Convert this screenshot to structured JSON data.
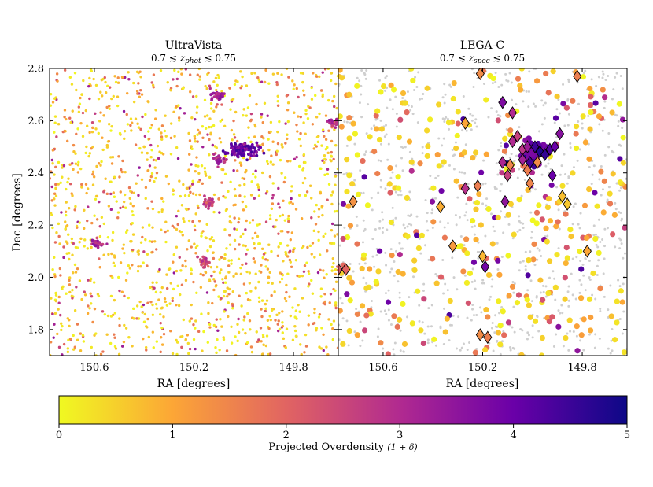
{
  "chart_data": [
    {
      "type": "scatter",
      "title": "UltraVista",
      "subtitle": "0.7 ≲ z_phot ≲ 0.75",
      "subtitle_parts": {
        "pre": "0.7 ≲ ",
        "var": "z",
        "sub": "phot",
        "post": " ≲ 0.75"
      },
      "xlabel": "RA [degrees]",
      "ylabel": "Dec [degrees]",
      "xlim": [
        150.78,
        149.62
      ],
      "ylim": [
        1.7,
        2.8
      ],
      "x_inverted": true,
      "xticks": [
        150.6,
        150.2,
        149.8
      ],
      "xtick_labels": [
        "150.6",
        "150.2",
        "149.8"
      ],
      "yticks": [
        1.8,
        2.0,
        2.2,
        2.4,
        2.6,
        2.8
      ],
      "ytick_labels": [
        "1.8",
        "2.0",
        "2.2",
        "2.4",
        "2.6",
        "2.8"
      ],
      "grid": false,
      "series": [
        {
          "marker": "dot",
          "overdensity_scale": [
            0,
            5
          ],
          "points": [
            [
              150.65,
              2.7,
              0.3
            ],
            [
              150.4,
              2.5,
              0.5
            ],
            [
              150.1,
              2.3,
              1.5
            ],
            [
              149.9,
              2.0,
              0.8
            ]
          ],
          "clusters": [
            {
              "ra": 150.0,
              "dec": 2.49,
              "overdensity": 4.5,
              "spread_ra": 0.06,
              "spread_dec": 0.03
            },
            {
              "ra": 150.11,
              "dec": 2.7,
              "overdensity": 3.8,
              "spread_ra": 0.03,
              "spread_dec": 0.025
            },
            {
              "ra": 150.1,
              "dec": 2.45,
              "overdensity": 3.6,
              "spread_ra": 0.025,
              "spread_dec": 0.02
            },
            {
              "ra": 150.59,
              "dec": 2.13,
              "overdensity": 3.6,
              "spread_ra": 0.02,
              "spread_dec": 0.02
            },
            {
              "ra": 150.14,
              "dec": 2.29,
              "overdensity": 3.0,
              "spread_ra": 0.02,
              "spread_dec": 0.02
            },
            {
              "ra": 150.16,
              "dec": 2.06,
              "overdensity": 3.0,
              "spread_ra": 0.02,
              "spread_dec": 0.02
            },
            {
              "ra": 149.64,
              "dec": 2.59,
              "overdensity": 3.6,
              "spread_ra": 0.02,
              "spread_dec": 0.02
            }
          ]
        }
      ]
    },
    {
      "type": "scatter",
      "title": "LEGA-C",
      "subtitle": "0.7 ≲ z_spec ≲ 0.75",
      "subtitle_parts": {
        "pre": "0.7 ≲ ",
        "var": "z",
        "sub": "spec",
        "post": " ≲ 0.75"
      },
      "xlabel": "RA [degrees]",
      "ylabel": "",
      "xlim": [
        150.78,
        149.62
      ],
      "ylim": [
        1.7,
        2.8
      ],
      "x_inverted": true,
      "xticks": [
        150.6,
        150.2,
        149.8
      ],
      "xtick_labels": [
        "150.6",
        "150.2",
        "149.8"
      ],
      "yticks": [
        1.8,
        2.0,
        2.2,
        2.4,
        2.6,
        2.8
      ],
      "grid": false,
      "series": [
        {
          "marker": "background-dot",
          "color": "#cfcfcf"
        },
        {
          "marker": "circle",
          "overdensity_scale": [
            0,
            5
          ]
        },
        {
          "marker": "diamond",
          "points": [
            [
              150.27,
              2.59,
              1.0
            ],
            [
              150.21,
              2.78,
              1.4
            ],
            [
              149.82,
              2.77,
              1.6
            ],
            [
              150.12,
              2.67,
              3.7
            ],
            [
              150.08,
              2.63,
              3.0
            ],
            [
              150.06,
              2.54,
              2.6
            ],
            [
              150.08,
              2.52,
              3.0
            ],
            [
              150.04,
              2.49,
              2.8
            ],
            [
              150.02,
              2.5,
              3.3
            ],
            [
              149.99,
              2.5,
              4.5
            ],
            [
              149.97,
              2.48,
              4.8
            ],
            [
              149.95,
              2.47,
              4.6
            ],
            [
              149.93,
              2.49,
              4.3
            ],
            [
              149.91,
              2.5,
              4.0
            ],
            [
              149.89,
              2.55,
              3.6
            ],
            [
              150.12,
              2.44,
              3.1
            ],
            [
              150.1,
              2.39,
              2.6
            ],
            [
              150.09,
              2.43,
              1.5
            ],
            [
              150.04,
              2.45,
              3.2
            ],
            [
              150.02,
              2.41,
              1.6
            ],
            [
              150.01,
              2.44,
              4.4
            ],
            [
              149.98,
              2.44,
              1.4
            ],
            [
              149.92,
              2.39,
              4.0
            ],
            [
              150.01,
              2.36,
              1.5
            ],
            [
              149.88,
              2.31,
              0.7
            ],
            [
              149.86,
              2.28,
              0.6
            ],
            [
              150.27,
              2.34,
              2.9
            ],
            [
              150.22,
              2.35,
              1.6
            ],
            [
              150.11,
              2.29,
              3.5
            ],
            [
              150.37,
              2.27,
              0.9
            ],
            [
              150.32,
              2.12,
              1.2
            ],
            [
              150.72,
              2.29,
              1.3
            ],
            [
              150.78,
              2.03,
              2.2
            ],
            [
              150.75,
              2.03,
              2.0
            ],
            [
              150.2,
              2.08,
              0.8
            ],
            [
              150.19,
              2.04,
              3.9
            ],
            [
              149.78,
              2.1,
              1.0
            ],
            [
              150.21,
              1.78,
              1.4
            ],
            [
              150.18,
              1.77,
              1.6
            ]
          ]
        }
      ]
    }
  ],
  "colorbar": {
    "label_text": "Projected Overdensity ",
    "label_math": "(1 + δ)",
    "min": 0,
    "max": 5,
    "ticks": [
      0,
      1,
      2,
      3,
      4,
      5
    ],
    "tick_labels": [
      "0",
      "1",
      "2",
      "3",
      "4",
      "5"
    ],
    "colormap": "plasma",
    "stops": [
      "#f0f921",
      "#fca636",
      "#e16462",
      "#b12a90",
      "#6a00a8",
      "#0d0887"
    ]
  }
}
